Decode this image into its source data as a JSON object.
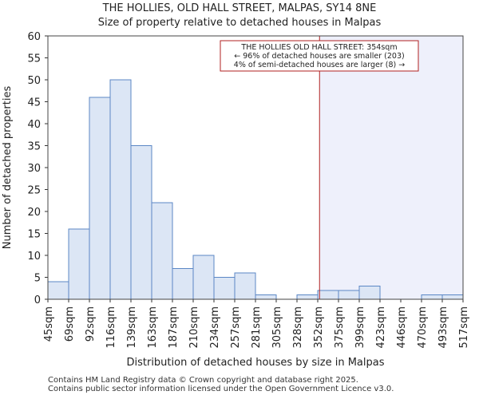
{
  "title": "THE HOLLIES, OLD HALL STREET, MALPAS, SY14 8NE",
  "subtitle": "Size of property relative to detached houses in Malpas",
  "footer": {
    "line1": "Contains HM Land Registry data © Crown copyright and database right 2025.",
    "line2": "Contains public sector information licensed under the Open Government Licence v3.0."
  },
  "chart_data": {
    "type": "bar",
    "xlabel": "Distribution of detached houses by size in Malpas",
    "ylabel": "Number of detached properties",
    "ylim": [
      0,
      60
    ],
    "yticks": [
      0,
      5,
      10,
      15,
      20,
      25,
      30,
      35,
      40,
      45,
      50,
      55,
      60
    ],
    "bin_edges": [
      "45sqm",
      "69sqm",
      "92sqm",
      "116sqm",
      "139sqm",
      "163sqm",
      "187sqm",
      "210sqm",
      "234sqm",
      "257sqm",
      "281sqm",
      "305sqm",
      "328sqm",
      "352sqm",
      "375sqm",
      "399sqm",
      "423sqm",
      "446sqm",
      "470sqm",
      "493sqm",
      "517sqm"
    ],
    "values": [
      4,
      16,
      46,
      50,
      35,
      22,
      7,
      10,
      5,
      6,
      1,
      0,
      1,
      2,
      2,
      3,
      0,
      0,
      1,
      1
    ],
    "grid": false,
    "colors": {
      "bar_fill": "#dce6f5",
      "bar_edge": "#5b87c5",
      "marker_line": "#b22222",
      "highlight_fill": "#eef0fb"
    },
    "marker": {
      "value": 354,
      "annotation": [
        "THE HOLLIES OLD HALL STREET: 354sqm",
        "← 96% of detached houses are smaller (203)",
        "4% of semi-detached houses are larger (8) →"
      ]
    }
  }
}
